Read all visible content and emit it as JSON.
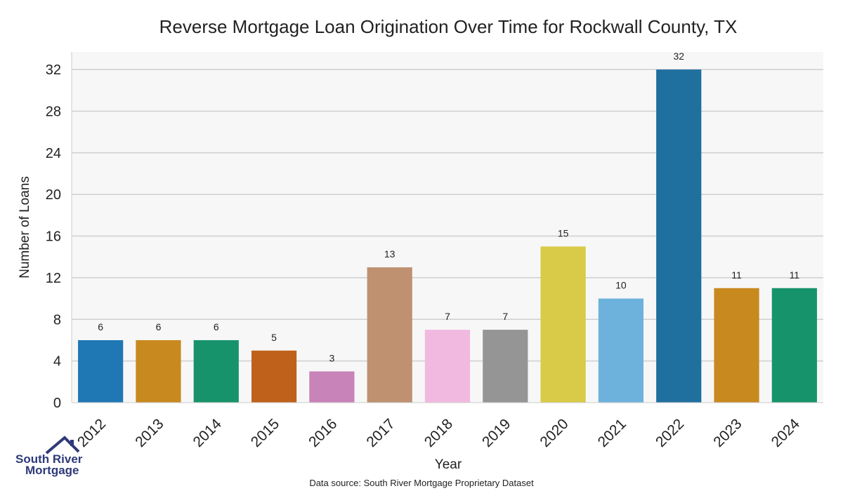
{
  "logo": {
    "line1": "South River",
    "line2": "Mortgage",
    "icon": "house-roof-icon"
  },
  "source_note": "Data source: South River Mortgage Proprietary Dataset",
  "chart_data": {
    "type": "bar",
    "title": "Reverse Mortgage Loan Origination Over Time for Rockwall County, TX",
    "xlabel": "Year",
    "ylabel": "Number of Loans",
    "categories": [
      "2012",
      "2013",
      "2014",
      "2015",
      "2016",
      "2017",
      "2018",
      "2019",
      "2020",
      "2021",
      "2022",
      "2023",
      "2024"
    ],
    "values": [
      6,
      6,
      6,
      5,
      3,
      13,
      7,
      7,
      15,
      10,
      32,
      11,
      11
    ],
    "colors": [
      "#1f78b4",
      "#c8891e",
      "#17936b",
      "#c0611b",
      "#c883b8",
      "#bf9171",
      "#f2b9e0",
      "#959595",
      "#d9ca48",
      "#6db2dc",
      "#1f6f9f",
      "#c8891e",
      "#17936b"
    ],
    "ylim": [
      0,
      34
    ],
    "yticks": [
      0,
      4,
      8,
      12,
      16,
      20,
      24,
      28,
      32
    ],
    "grid": true,
    "data_labels": true,
    "legend": "none"
  }
}
